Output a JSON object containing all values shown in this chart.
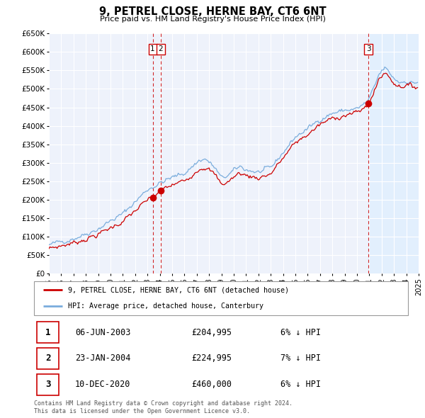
{
  "title": "9, PETREL CLOSE, HERNE BAY, CT6 6NT",
  "subtitle": "Price paid vs. HM Land Registry's House Price Index (HPI)",
  "bg_color": "#eef2fb",
  "grid_color": "#ffffff",
  "red_line_color": "#cc0000",
  "blue_line_color": "#7aaddd",
  "sale_marker_color": "#cc0000",
  "dashed_line_color": "#cc0000",
  "shade_color": "#ddeeff",
  "legend_label_red": "9, PETREL CLOSE, HERNE BAY, CT6 6NT (detached house)",
  "legend_label_blue": "HPI: Average price, detached house, Canterbury",
  "transactions": [
    {
      "num": 1,
      "date": "2003-06-06",
      "price": 204995,
      "pct": "6%",
      "dir": "↓"
    },
    {
      "num": 2,
      "date": "2004-01-23",
      "price": 224995,
      "pct": "7%",
      "dir": "↓"
    },
    {
      "num": 3,
      "date": "2020-12-10",
      "price": 460000,
      "pct": "6%",
      "dir": "↓"
    }
  ],
  "footnote1": "Contains HM Land Registry data © Crown copyright and database right 2024.",
  "footnote2": "This data is licensed under the Open Government Licence v3.0.",
  "ylim_min": 0,
  "ylim_max": 650000,
  "yticks": [
    0,
    50000,
    100000,
    150000,
    200000,
    250000,
    300000,
    350000,
    400000,
    450000,
    500000,
    550000,
    600000,
    650000
  ],
  "ytick_labels": [
    "£0",
    "£50K",
    "£100K",
    "£150K",
    "£200K",
    "£250K",
    "£300K",
    "£350K",
    "£400K",
    "£450K",
    "£500K",
    "£550K",
    "£600K",
    "£650K"
  ]
}
